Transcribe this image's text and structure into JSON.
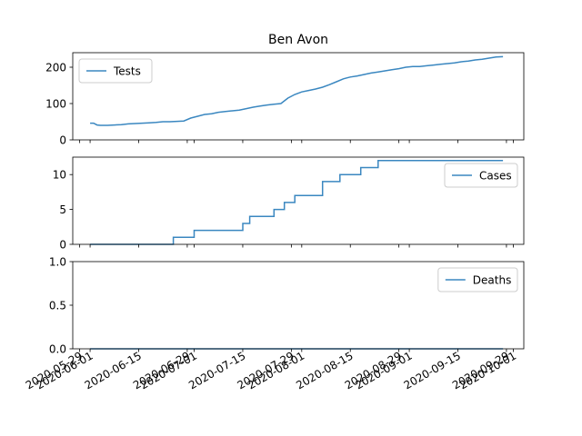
{
  "figure": {
    "title": "Ben Avon",
    "line_color": "#3a87c0"
  },
  "chart_data": [
    {
      "type": "line",
      "panel": "top",
      "title": "Ben Avon",
      "legend": "top-left",
      "ylim": [
        0,
        240
      ],
      "yticks": [
        "0",
        "100",
        "200"
      ],
      "yticks_values": [
        0,
        100,
        200
      ],
      "series": [
        {
          "name": "Tests",
          "x": [
            "2020-06-01",
            "2020-06-02",
            "2020-06-03",
            "2020-06-04",
            "2020-06-06",
            "2020-06-08",
            "2020-06-10",
            "2020-06-12",
            "2020-06-14",
            "2020-06-16",
            "2020-06-18",
            "2020-06-20",
            "2020-06-22",
            "2020-06-24",
            "2020-06-26",
            "2020-06-28",
            "2020-06-30",
            "2020-07-02",
            "2020-07-04",
            "2020-07-06",
            "2020-07-08",
            "2020-07-10",
            "2020-07-12",
            "2020-07-14",
            "2020-07-16",
            "2020-07-18",
            "2020-07-20",
            "2020-07-22",
            "2020-07-24",
            "2020-07-26",
            "2020-07-28",
            "2020-07-30",
            "2020-08-01",
            "2020-08-03",
            "2020-08-05",
            "2020-08-07",
            "2020-08-09",
            "2020-08-11",
            "2020-08-13",
            "2020-08-15",
            "2020-08-17",
            "2020-08-19",
            "2020-08-21",
            "2020-08-23",
            "2020-08-25",
            "2020-08-27",
            "2020-08-29",
            "2020-08-31",
            "2020-09-02",
            "2020-09-04",
            "2020-09-06",
            "2020-09-08",
            "2020-09-10",
            "2020-09-12",
            "2020-09-14",
            "2020-09-16",
            "2020-09-18",
            "2020-09-20",
            "2020-09-22",
            "2020-09-24",
            "2020-09-26",
            "2020-09-28"
          ],
          "y": [
            46,
            46,
            41,
            40,
            40,
            41,
            42,
            44,
            45,
            46,
            47,
            48,
            50,
            50,
            51,
            52,
            60,
            65,
            70,
            72,
            76,
            78,
            80,
            82,
            86,
            90,
            93,
            96,
            98,
            100,
            115,
            125,
            132,
            136,
            140,
            145,
            152,
            160,
            168,
            173,
            176,
            180,
            184,
            187,
            190,
            193,
            196,
            200,
            202,
            202,
            204,
            206,
            208,
            210,
            212,
            215,
            217,
            220,
            222,
            225,
            228,
            229
          ]
        }
      ]
    },
    {
      "type": "line",
      "panel": "middle",
      "legend": "top-right",
      "ylim": [
        0,
        12.5
      ],
      "yticks": [
        "0",
        "5",
        "10"
      ],
      "yticks_values": [
        0,
        5,
        10
      ],
      "series": [
        {
          "name": "Cases",
          "x": [
            "2020-06-01",
            "2020-06-25",
            "2020-06-30",
            "2020-07-01",
            "2020-07-13",
            "2020-07-15",
            "2020-07-17",
            "2020-07-22",
            "2020-07-24",
            "2020-07-27",
            "2020-07-30",
            "2020-08-03",
            "2020-08-07",
            "2020-08-12",
            "2020-08-18",
            "2020-08-23",
            "2020-09-28"
          ],
          "y": [
            0,
            1,
            1,
            2,
            2,
            3,
            4,
            4,
            5,
            6,
            7,
            7,
            9,
            10,
            11,
            12,
            12
          ]
        }
      ]
    },
    {
      "type": "line",
      "panel": "bottom",
      "legend": "top-right",
      "ylim": [
        0,
        1
      ],
      "yticks": [
        "0.0",
        "0.5",
        "1.0"
      ],
      "yticks_values": [
        0,
        0.5,
        1.0
      ],
      "xticks": [
        "2020-05-29",
        "2020-06-01",
        "2020-06-15",
        "2020-06-29",
        "2020-07-01",
        "2020-07-15",
        "2020-07-29",
        "2020-08-01",
        "2020-08-15",
        "2020-08-29",
        "2020-09-01",
        "2020-09-15",
        "2020-09-29",
        "2020-10-01"
      ],
      "series": [
        {
          "name": "Deaths",
          "x": [
            "2020-06-01",
            "2020-09-28"
          ],
          "y": [
            0,
            0
          ]
        }
      ]
    }
  ]
}
